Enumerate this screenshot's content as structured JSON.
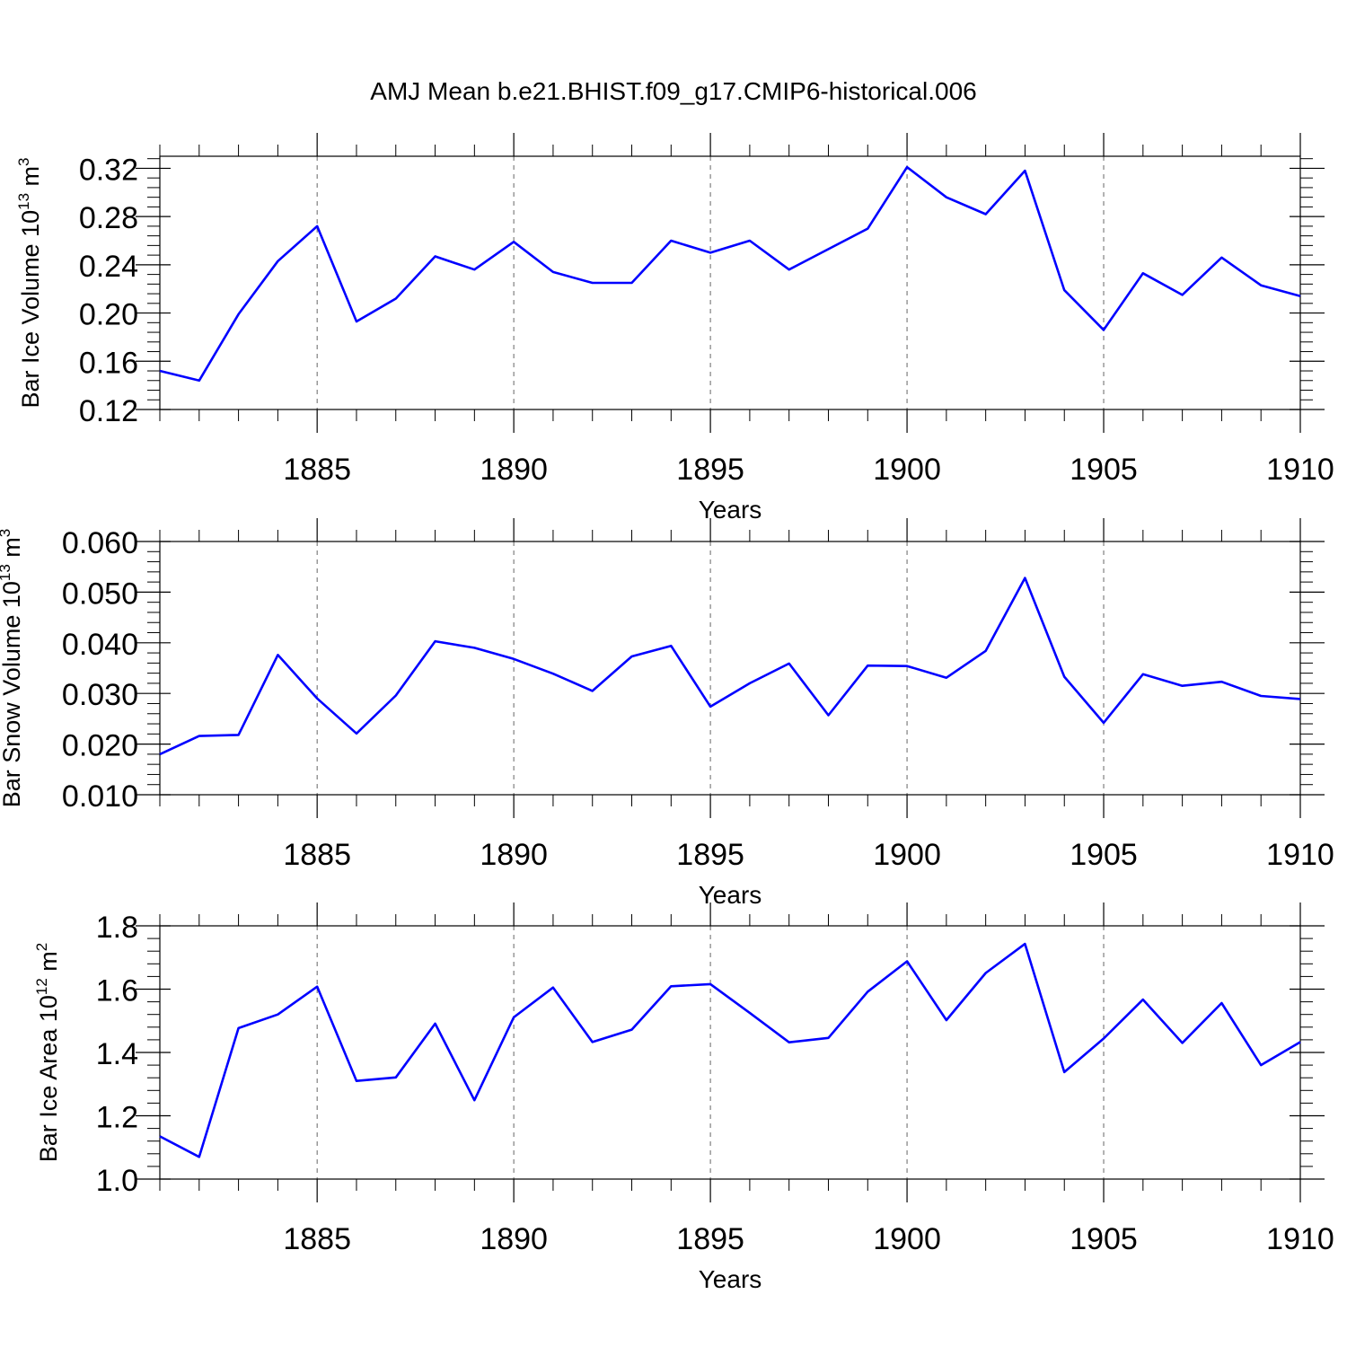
{
  "title": "AMJ Mean b.e21.BHIST.f09_g17.CMIP6-historical.006",
  "chart_data": [
    {
      "type": "line",
      "xlabel": "Years",
      "ylabel": "Bar Ice Volume 10",
      "ylabel_exp": "13",
      "ylabel_unit": " m",
      "ylabel_unit_exp": "3",
      "xlim": [
        1881,
        1910
      ],
      "ylim": [
        0.12,
        0.33
      ],
      "yticks": [
        0.12,
        0.16,
        0.2,
        0.24,
        0.28,
        0.32
      ],
      "ytick_labels": [
        "0.12",
        "0.16",
        "0.20",
        "0.24",
        "0.28",
        "0.32"
      ],
      "xticks": [
        1885,
        1890,
        1895,
        1900,
        1905,
        1910
      ],
      "xtick_labels": [
        "1885",
        "1890",
        "1895",
        "1900",
        "1905",
        "1910"
      ],
      "grid": "vertical dashed at major x ticks",
      "color": "#0000ff",
      "x": [
        1881,
        1882,
        1883,
        1884,
        1885,
        1886,
        1887,
        1888,
        1889,
        1890,
        1891,
        1892,
        1893,
        1894,
        1895,
        1896,
        1897,
        1898,
        1899,
        1900,
        1901,
        1902,
        1903,
        1904,
        1905,
        1906,
        1907,
        1908,
        1909,
        1910
      ],
      "values": [
        0.152,
        0.144,
        0.199,
        0.243,
        0.272,
        0.193,
        0.212,
        0.247,
        0.236,
        0.259,
        0.234,
        0.225,
        0.225,
        0.26,
        0.25,
        0.26,
        0.236,
        0.253,
        0.27,
        0.321,
        0.296,
        0.282,
        0.318,
        0.219,
        0.186,
        0.233,
        0.215,
        0.246,
        0.223,
        0.214
      ]
    },
    {
      "type": "line",
      "xlabel": "Years",
      "ylabel": "Bar Snow Volume 10",
      "ylabel_exp": "13",
      "ylabel_unit": " m",
      "ylabel_unit_exp": "3",
      "xlim": [
        1881,
        1910
      ],
      "ylim": [
        0.01,
        0.06
      ],
      "yticks": [
        0.01,
        0.02,
        0.03,
        0.04,
        0.05,
        0.06
      ],
      "ytick_labels": [
        "0.010",
        "0.020",
        "0.030",
        "0.040",
        "0.050",
        "0.060"
      ],
      "xticks": [
        1885,
        1890,
        1895,
        1900,
        1905,
        1910
      ],
      "xtick_labels": [
        "1885",
        "1890",
        "1895",
        "1900",
        "1905",
        "1910"
      ],
      "grid": "vertical dashed at major x ticks",
      "color": "#0000ff",
      "x": [
        1881,
        1882,
        1883,
        1884,
        1885,
        1886,
        1887,
        1888,
        1889,
        1890,
        1891,
        1892,
        1893,
        1894,
        1895,
        1896,
        1897,
        1898,
        1899,
        1900,
        1901,
        1902,
        1903,
        1904,
        1905,
        1906,
        1907,
        1908,
        1909,
        1910
      ],
      "values": [
        0.018,
        0.0216,
        0.0218,
        0.0376,
        0.029,
        0.0221,
        0.0296,
        0.0403,
        0.039,
        0.0368,
        0.0339,
        0.0305,
        0.0373,
        0.0394,
        0.0274,
        0.032,
        0.0359,
        0.0257,
        0.0355,
        0.0354,
        0.0331,
        0.0384,
        0.0528,
        0.0333,
        0.0242,
        0.0338,
        0.0315,
        0.0323,
        0.0295,
        0.0289
      ]
    },
    {
      "type": "line",
      "xlabel": "Years",
      "ylabel": "Bar Ice Area 10",
      "ylabel_exp": "12",
      "ylabel_unit": " m",
      "ylabel_unit_exp": "2",
      "xlim": [
        1881,
        1910
      ],
      "ylim": [
        1.0,
        1.8
      ],
      "yticks": [
        1.0,
        1.2,
        1.4,
        1.6,
        1.8
      ],
      "ytick_labels": [
        "1.0",
        "1.2",
        "1.4",
        "1.6",
        "1.8"
      ],
      "xticks": [
        1885,
        1890,
        1895,
        1900,
        1905,
        1910
      ],
      "xtick_labels": [
        "1885",
        "1890",
        "1895",
        "1900",
        "1905",
        "1910"
      ],
      "grid": "vertical dashed at major x ticks",
      "color": "#0000ff",
      "x": [
        1881,
        1882,
        1883,
        1884,
        1885,
        1886,
        1887,
        1888,
        1889,
        1890,
        1891,
        1892,
        1893,
        1894,
        1895,
        1896,
        1897,
        1898,
        1899,
        1900,
        1901,
        1902,
        1903,
        1904,
        1905,
        1906,
        1907,
        1908,
        1909,
        1910
      ],
      "values": [
        1.135,
        1.07,
        1.477,
        1.52,
        1.608,
        1.31,
        1.321,
        1.491,
        1.249,
        1.511,
        1.605,
        1.433,
        1.472,
        1.609,
        1.616,
        1.525,
        1.432,
        1.446,
        1.592,
        1.688,
        1.502,
        1.651,
        1.743,
        1.338,
        1.444,
        1.567,
        1.43,
        1.556,
        1.36,
        1.433
      ]
    }
  ]
}
